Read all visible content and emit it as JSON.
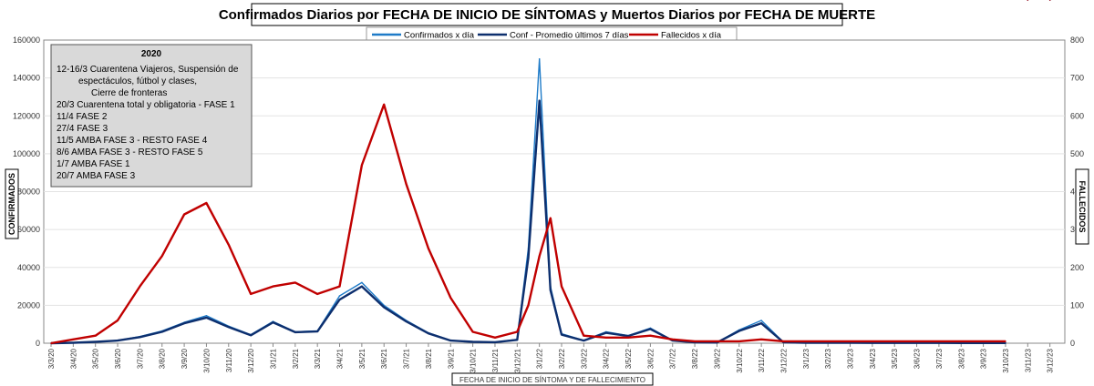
{
  "chart_data": {
    "type": "line",
    "title": "Confirmados Diarios por FECHA DE INICIO DE SÍNTOMAS y Muertos Diarios por FECHA DE MUERTE",
    "xlabel": "FECHA DE INICIO DE SÍNTOMA Y DE FALLECIMIENTO",
    "ylabel_left": "CONFIRMADOS",
    "ylabel_right": "FALLECIDOS",
    "ylim_left": [
      0,
      160000
    ],
    "ylim_right": [
      0,
      800
    ],
    "yticks_left": [
      "0",
      "20000",
      "40000",
      "60000",
      "80000",
      "100000",
      "120000",
      "140000",
      "160000"
    ],
    "yticks_right": [
      "0",
      "100",
      "200",
      "300",
      "400",
      "500",
      "600",
      "700",
      "800"
    ],
    "xticks": [
      "3/3/20",
      "3/4/20",
      "3/5/20",
      "3/6/20",
      "3/7/20",
      "3/8/20",
      "3/9/20",
      "3/10/20",
      "3/11/20",
      "3/12/20",
      "3/1/21",
      "3/2/21",
      "3/3/21",
      "3/4/21",
      "3/5/21",
      "3/6/21",
      "3/7/21",
      "3/8/21",
      "3/9/21",
      "3/10/21",
      "3/11/21",
      "3/12/21",
      "3/1/22",
      "3/2/22",
      "3/3/22",
      "3/4/22",
      "3/5/22",
      "3/6/22",
      "3/7/22",
      "3/8/22",
      "3/9/22",
      "3/10/22",
      "3/11/22",
      "3/12/22",
      "3/1/23",
      "3/2/23",
      "3/3/23",
      "3/4/23",
      "3/5/23",
      "3/6/23",
      "3/7/23",
      "3/8/23",
      "3/9/23",
      "3/10/23",
      "3/11/23",
      "3/12/23"
    ],
    "grid": true,
    "legend_position": "top-center",
    "series": [
      {
        "name": "Confirmados x día",
        "axis": "left",
        "color": "#1f7bc8",
        "x_month_index": [
          0,
          1,
          2,
          3,
          4,
          5,
          6,
          7,
          8,
          9,
          10,
          11,
          12,
          13,
          14,
          15,
          16,
          17,
          18,
          19,
          20,
          21,
          21.5,
          22,
          22.5,
          23,
          24,
          25,
          26,
          27,
          28,
          29,
          30,
          31,
          32,
          33,
          34,
          35,
          36,
          37,
          38,
          39,
          40,
          41,
          42,
          43,
          44,
          45
        ],
        "values": [
          0,
          300,
          800,
          1500,
          3500,
          6500,
          11000,
          14500,
          9000,
          4500,
          11500,
          6000,
          6500,
          25000,
          32000,
          20000,
          12000,
          5500,
          1500,
          800,
          600,
          2000,
          50000,
          150000,
          30000,
          5000,
          1500,
          6000,
          4000,
          8000,
          1500,
          500,
          400,
          7000,
          12000,
          500,
          300,
          200,
          200,
          150,
          150,
          150,
          150,
          100,
          100,
          100
        ]
      },
      {
        "name": "Conf - Promedio últimos 7 días",
        "axis": "left",
        "color": "#0d2f6e",
        "x_month_index": [
          0,
          1,
          2,
          3,
          4,
          5,
          6,
          7,
          8,
          9,
          10,
          11,
          12,
          13,
          14,
          15,
          16,
          17,
          18,
          19,
          20,
          21,
          21.5,
          22,
          22.5,
          23,
          24,
          25,
          26,
          27,
          28,
          29,
          30,
          31,
          32,
          33,
          34,
          35,
          36,
          37,
          38,
          39,
          40,
          41,
          42,
          43,
          44,
          45
        ],
        "values": [
          0,
          250,
          700,
          1400,
          3200,
          6000,
          10500,
          13500,
          8500,
          4200,
          11000,
          5800,
          6200,
          23000,
          30000,
          19000,
          11500,
          5200,
          1400,
          700,
          550,
          1800,
          45000,
          128000,
          28000,
          4500,
          1400,
          5500,
          3800,
          7500,
          1400,
          450,
          350,
          6500,
          10500,
          450,
          250,
          180,
          180,
          140,
          140,
          140,
          140,
          90,
          90,
          90
        ]
      },
      {
        "name": "Fallecidos x día",
        "axis": "right",
        "color": "#c00000",
        "x_month_index": [
          0,
          1,
          2,
          3,
          4,
          5,
          6,
          7,
          8,
          9,
          10,
          11,
          12,
          13,
          14,
          15,
          16,
          17,
          18,
          19,
          20,
          21,
          21.5,
          22,
          22.5,
          23,
          24,
          25,
          26,
          27,
          28,
          29,
          30,
          31,
          32,
          33,
          34,
          35,
          36,
          37,
          38,
          39,
          40,
          41,
          42,
          43,
          44,
          45
        ],
        "values": [
          0,
          10,
          20,
          60,
          150,
          230,
          340,
          370,
          260,
          130,
          150,
          160,
          130,
          150,
          470,
          630,
          420,
          250,
          120,
          30,
          15,
          30,
          100,
          230,
          330,
          150,
          20,
          15,
          15,
          20,
          10,
          5,
          5,
          5,
          10,
          5,
          5,
          5,
          5,
          5,
          5,
          5,
          5,
          5,
          5,
          5
        ]
      }
    ],
    "annotation_box": {
      "title": "2020",
      "lines": [
        "12-16/3 Cuarentena Viajeros, Suspensión de",
        "espectáculos, fútbol y clases,",
        "Cierre de fronteras",
        "20/3 Cuarentena total y obligatoria - FASE 1",
        "11/4 FASE 2",
        "27/4 FASE 3",
        "11/5 AMBA FASE 3 - RESTO FASE 4",
        "8/6 AMBA FASE 3 - RESTO FASE 5",
        "1/7 AMBA FASE 1",
        "20/7 AMBA FASE 3"
      ]
    }
  }
}
